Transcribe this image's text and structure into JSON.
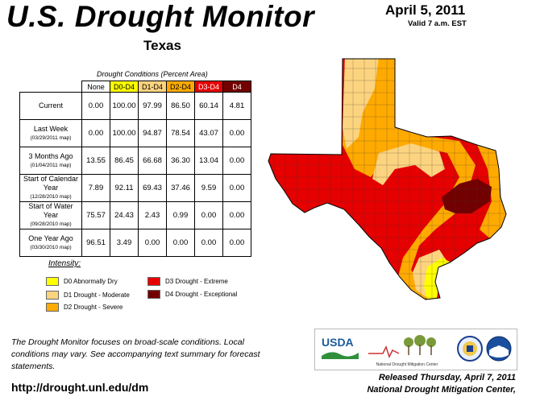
{
  "header": {
    "title": "U.S. Drought Monitor",
    "region": "Texas",
    "date": "April 5, 2011",
    "valid": "Valid 7 a.m. EST"
  },
  "table": {
    "caption": "Drought Conditions (Percent Area)",
    "columns": [
      "None",
      "D0-D4",
      "D1-D4",
      "D2-D4",
      "D3-D4",
      "D4"
    ],
    "column_colors": [
      "#ffffff",
      "#ffff00",
      "#fcd37f",
      "#ffaa00",
      "#e60000",
      "#730000"
    ],
    "rows": [
      {
        "label": "Current",
        "sub": "",
        "values": [
          "0.00",
          "100.00",
          "97.99",
          "86.50",
          "60.14",
          "4.81"
        ]
      },
      {
        "label": "Last Week",
        "sub": "(03/29/2011 map)",
        "values": [
          "0.00",
          "100.00",
          "94.87",
          "78.54",
          "43.07",
          "0.00"
        ]
      },
      {
        "label": "3 Months Ago",
        "sub": "(01/04/2011 map)",
        "values": [
          "13.55",
          "86.45",
          "66.68",
          "36.30",
          "13.04",
          "0.00"
        ]
      },
      {
        "label": "Start of Calendar Year",
        "sub": "(12/28/2010 map)",
        "values": [
          "7.89",
          "92.11",
          "69.43",
          "37.46",
          "9.59",
          "0.00"
        ]
      },
      {
        "label": "Start of Water Year",
        "sub": "(09/28/2010 map)",
        "values": [
          "75.57",
          "24.43",
          "2.43",
          "0.99",
          "0.00",
          "0.00"
        ]
      },
      {
        "label": "One Year Ago",
        "sub": "(03/30/2010 map)",
        "values": [
          "96.51",
          "3.49",
          "0.00",
          "0.00",
          "0.00",
          "0.00"
        ]
      }
    ]
  },
  "legend": {
    "title": "Intensity:",
    "items": [
      {
        "label": "D0 Abnormally Dry",
        "color": "#ffff00"
      },
      {
        "label": "D1 Drought - Moderate",
        "color": "#fcd37f"
      },
      {
        "label": "D2 Drought - Severe",
        "color": "#ffaa00"
      },
      {
        "label": "D3 Drought - Extreme",
        "color": "#e60000"
      },
      {
        "label": "D4 Drought - Exceptional",
        "color": "#730000"
      }
    ]
  },
  "note": "The Drought Monitor focuses on broad-scale conditions. Local conditions may vary. See accompanying text summary for forecast statements.",
  "url": "http://drought.unl.edu/dm",
  "footer": {
    "released": "Released Thursday, April 7, 2011",
    "author": "National Drought Mitigation Center,"
  },
  "logos": {
    "usda": "USDA",
    "ndmc": "National Drought Mitigation Center"
  }
}
